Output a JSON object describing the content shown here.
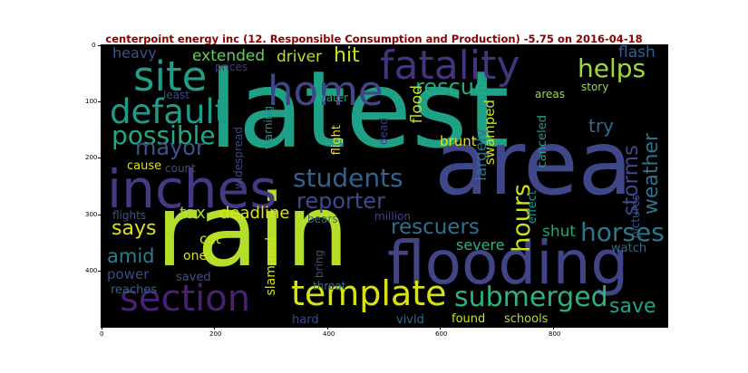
{
  "title": "centerpoint energy inc (12. Responsible Consumption and Production) -5.75 on 2016-04-18",
  "x_ticks": [
    "0",
    "200",
    "400",
    "600",
    "800"
  ],
  "y_ticks": [
    "0",
    "100",
    "200",
    "300",
    "400"
  ],
  "palette": {
    "teal": "#1fa187",
    "blue": "#414487",
    "purple": "#46327e",
    "dark_purple": "#3b1c5a",
    "steel": "#2a788e",
    "slate": "#355f8d",
    "green": "#35b779",
    "lime": "#90d743",
    "yellow": "#dde318",
    "bright_yellow": "#fde725"
  },
  "words": [
    {
      "text": "latest",
      "color": "#1fa187"
    },
    {
      "text": "area",
      "color": "#3f4788"
    },
    {
      "text": "rain",
      "color": "#b5de2b"
    },
    {
      "text": "flooding",
      "color": "#414487"
    },
    {
      "text": "inches",
      "color": "#443a83"
    },
    {
      "text": "fatality",
      "color": "#46337e"
    },
    {
      "text": "site",
      "color": "#1f9e89"
    },
    {
      "text": "home",
      "color": "#404688"
    },
    {
      "text": "section",
      "color": "#482173"
    },
    {
      "text": "template",
      "color": "#d8e219"
    },
    {
      "text": "submerged",
      "color": "#2db27d"
    },
    {
      "text": "default",
      "color": "#1e9c89"
    },
    {
      "text": "possible",
      "color": "#22a884"
    },
    {
      "text": "students",
      "color": "#33638d"
    },
    {
      "text": "helps",
      "color": "#a0da39"
    },
    {
      "text": "rescue",
      "color": "#25ac82"
    },
    {
      "text": "mayor",
      "color": "#3a548c"
    },
    {
      "text": "reporter",
      "color": "#3e4a89"
    },
    {
      "text": "horses",
      "color": "#2a788e"
    },
    {
      "text": "hours",
      "color": "#cde11d"
    },
    {
      "text": "storms",
      "color": "#3f4788"
    },
    {
      "text": "weather",
      "color": "#2c718e"
    },
    {
      "text": "rescuers",
      "color": "#2c718e"
    },
    {
      "text": "save",
      "color": "#20a386"
    },
    {
      "text": "says",
      "color": "#dde318"
    },
    {
      "text": "amid",
      "color": "#26818e"
    },
    {
      "text": "deadline",
      "color": "#dde318"
    },
    {
      "text": "tax",
      "color": "#a8db34"
    },
    {
      "text": "flash",
      "color": "#355f8d"
    },
    {
      "text": "hit",
      "color": "#cde11d"
    },
    {
      "text": "driver",
      "color": "#b8de29"
    },
    {
      "text": "extended",
      "color": "#67cc5c"
    },
    {
      "text": "heavy",
      "color": "#3b528b"
    },
    {
      "text": "try",
      "color": "#2f6c8e"
    },
    {
      "text": "severe",
      "color": "#2db27d"
    },
    {
      "text": "shut",
      "color": "#20a386"
    },
    {
      "text": "largely",
      "color": "#2c728e"
    },
    {
      "text": "flood",
      "color": "#c2df23"
    },
    {
      "text": "brunt",
      "color": "#e5e419"
    },
    {
      "text": "swamped",
      "color": "#c8e020"
    },
    {
      "text": "power",
      "color": "#3e4989"
    },
    {
      "text": "cut",
      "color": "#cde11d"
    },
    {
      "text": "one",
      "color": "#d8e219"
    },
    {
      "text": "saved",
      "color": "#3b528b"
    },
    {
      "text": "reaches",
      "color": "#32658e"
    },
    {
      "text": "slammed",
      "color": "#d2e21b"
    },
    {
      "text": "bring",
      "color": "#3d4e8a"
    },
    {
      "text": "threat",
      "color": "#2e6e8e"
    },
    {
      "text": "hard",
      "color": "#3f4788"
    },
    {
      "text": "vivid",
      "color": "#2e6f8e"
    },
    {
      "text": "found",
      "color": "#cde11d"
    },
    {
      "text": "schools",
      "color": "#b5de2b"
    },
    {
      "text": "watch",
      "color": "#31688e"
    },
    {
      "text": "effect",
      "color": "#1f968b"
    },
    {
      "text": "pictures",
      "color": "#3b528b"
    },
    {
      "text": "million",
      "color": "#414487"
    },
    {
      "text": "bears",
      "color": "#31688e"
    },
    {
      "text": "flights",
      "color": "#39568c"
    },
    {
      "text": "count",
      "color": "#3b518b"
    },
    {
      "text": "cause",
      "color": "#dde318"
    },
    {
      "text": "widespread",
      "color": "#3f4889"
    },
    {
      "text": "warning",
      "color": "#21918c"
    },
    {
      "text": "flight",
      "color": "#e7e419"
    },
    {
      "text": "dead",
      "color": "#443983"
    },
    {
      "text": "canceled",
      "color": "#1fa088"
    },
    {
      "text": "areas",
      "color": "#a2da37"
    },
    {
      "text": "story",
      "color": "#95d840"
    },
    {
      "text": "water",
      "color": "#25ab82"
    },
    {
      "text": "least",
      "color": "#3e4a89"
    },
    {
      "text": "prices",
      "color": "#453882"
    }
  ]
}
